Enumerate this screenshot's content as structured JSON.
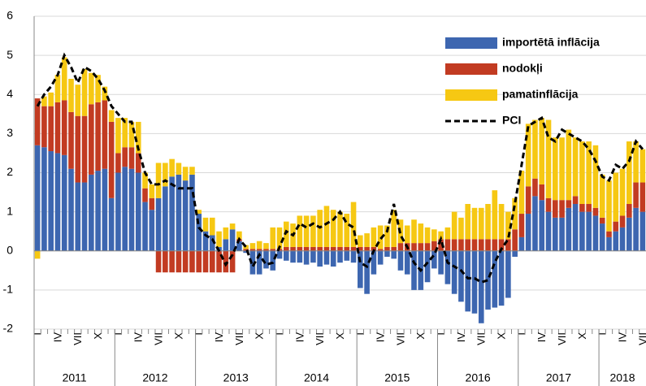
{
  "chart_data": {
    "type": "bar",
    "categories": [
      "I",
      null,
      null,
      "IV",
      null,
      null,
      "VII",
      null,
      null,
      "X",
      null,
      null,
      "I",
      null,
      null,
      "IV",
      null,
      null,
      "VII",
      null,
      null,
      "X",
      null,
      null,
      "I",
      null,
      null,
      "IV",
      null,
      null,
      "VII",
      null,
      null,
      "X",
      null,
      null,
      "I",
      null,
      null,
      "IV",
      null,
      null,
      "VII",
      null,
      null,
      "X",
      null,
      null,
      "I",
      null,
      null,
      "IV",
      null,
      null,
      "VII",
      null,
      null,
      "X",
      null,
      null,
      "I",
      null,
      null,
      "IV",
      null,
      null,
      "VII",
      null,
      null,
      "X",
      null,
      null,
      "I",
      null,
      null,
      "IV",
      null,
      null,
      "VII",
      null,
      null,
      "X",
      null,
      null,
      "I",
      null,
      null,
      "IV",
      null,
      null,
      "VII"
    ],
    "year_labels": [
      "2011",
      "2012",
      "2013",
      "2014",
      "2015",
      "2016",
      "2017",
      "2018"
    ],
    "series": [
      {
        "name": "importētā inflācija",
        "color": "#3d66b0",
        "type": "bar",
        "values": [
          2.7,
          2.65,
          2.55,
          2.5,
          2.45,
          2.1,
          1.75,
          1.75,
          1.95,
          2.05,
          2.1,
          1.35,
          2.0,
          2.15,
          2.1,
          2.0,
          1.25,
          1.05,
          1.35,
          1.65,
          1.9,
          1.95,
          1.8,
          1.95,
          0.95,
          0.5,
          0.4,
          0.1,
          0.3,
          0.55,
          0.25,
          -0.05,
          -0.6,
          -0.6,
          -0.45,
          -0.5,
          -0.2,
          -0.25,
          -0.3,
          -0.3,
          -0.35,
          -0.3,
          -0.4,
          -0.35,
          -0.4,
          -0.3,
          -0.25,
          -0.3,
          -0.95,
          -1.1,
          -0.6,
          -0.35,
          -0.15,
          -0.2,
          -0.5,
          -0.6,
          -1.0,
          -1.0,
          -0.8,
          -0.45,
          -0.6,
          -0.85,
          -1.1,
          -1.3,
          -1.55,
          -1.6,
          -1.85,
          -1.5,
          -1.45,
          -1.4,
          -1.2,
          -0.15,
          0.35,
          0.95,
          1.4,
          1.3,
          1.0,
          0.85,
          0.85,
          1.1,
          1.2,
          1.0,
          1.0,
          0.9,
          0.7,
          0.35,
          0.5,
          0.6,
          0.85,
          1.1,
          1.0
        ]
      },
      {
        "name": "nodokļi",
        "color": "#c23b22",
        "type": "bar",
        "values": [
          1.2,
          1.05,
          1.15,
          1.3,
          1.4,
          1.45,
          1.7,
          1.7,
          1.8,
          1.75,
          1.75,
          1.95,
          0.5,
          0.5,
          0.55,
          0.5,
          0.35,
          0.3,
          -0.55,
          -0.55,
          -0.55,
          -0.55,
          -0.55,
          -0.55,
          -0.55,
          -0.55,
          -0.55,
          -0.55,
          -0.55,
          -0.55,
          0.05,
          0.05,
          0.05,
          0.05,
          0.05,
          0.05,
          0.05,
          0.1,
          0.1,
          0.1,
          0.1,
          0.1,
          0.1,
          0.1,
          0.1,
          0.1,
          0.1,
          0.1,
          0.1,
          0.1,
          0.1,
          0.05,
          0.1,
          0.1,
          0.2,
          0.2,
          0.2,
          0.2,
          0.2,
          0.25,
          0.3,
          0.3,
          0.3,
          0.3,
          0.3,
          0.3,
          0.3,
          0.3,
          0.3,
          0.3,
          0.3,
          0.55,
          0.6,
          0.7,
          0.45,
          0.4,
          0.35,
          0.45,
          0.45,
          0.2,
          0.2,
          0.2,
          0.2,
          0.2,
          0.15,
          0.15,
          0.25,
          0.3,
          0.35,
          0.65,
          0.75
        ]
      },
      {
        "name": "pamatinflācija",
        "color": "#f6c813",
        "type": "bar",
        "values": [
          -0.2,
          0.25,
          0.35,
          0.7,
          1.1,
          0.85,
          0.8,
          1.2,
          0.8,
          0.7,
          0.35,
          0.3,
          0.9,
          0.75,
          0.65,
          0.8,
          0.4,
          0.35,
          0.9,
          0.6,
          0.45,
          0.3,
          0.35,
          0.2,
          0.1,
          0.35,
          0.45,
          0.4,
          0.3,
          0.15,
          0.2,
          0.1,
          0.15,
          0.2,
          0.15,
          0.55,
          0.55,
          0.65,
          0.6,
          0.8,
          0.8,
          0.8,
          0.95,
          1.05,
          0.95,
          0.9,
          0.85,
          1.15,
          0.3,
          0.35,
          0.5,
          0.6,
          0.55,
          0.95,
          0.6,
          0.45,
          0.6,
          0.5,
          0.4,
          0.3,
          0.2,
          0.3,
          0.7,
          0.55,
          0.9,
          0.8,
          0.8,
          0.9,
          1.25,
          0.9,
          0.7,
          0.8,
          1.1,
          1.6,
          1.5,
          1.7,
          2.0,
          1.6,
          1.6,
          1.8,
          1.5,
          1.6,
          1.6,
          1.6,
          1.1,
          1.3,
          1.25,
          1.2,
          1.6,
          1.05,
          0.85
        ]
      },
      {
        "name": "PCI",
        "color": "#000000",
        "type": "line",
        "values": [
          3.7,
          4.0,
          4.2,
          4.5,
          5.0,
          4.7,
          4.3,
          4.7,
          4.6,
          4.4,
          4.1,
          3.7,
          3.5,
          3.3,
          3.3,
          2.6,
          2.0,
          1.7,
          1.7,
          1.8,
          1.7,
          1.6,
          1.6,
          1.6,
          0.6,
          0.4,
          0.3,
          0.0,
          -0.35,
          -0.1,
          0.3,
          0.1,
          -0.4,
          -0.1,
          -0.35,
          -0.3,
          0.1,
          0.5,
          0.4,
          0.7,
          0.6,
          0.7,
          0.6,
          0.7,
          0.8,
          1.0,
          0.7,
          0.6,
          -0.3,
          -0.4,
          0.0,
          0.3,
          0.5,
          1.2,
          0.4,
          0.1,
          -0.3,
          -0.5,
          -0.3,
          -0.1,
          0.3,
          -0.3,
          -0.4,
          -0.5,
          -0.7,
          -0.7,
          -0.8,
          -0.75,
          -0.3,
          0.05,
          0.3,
          1.2,
          2.2,
          3.2,
          3.3,
          3.4,
          2.9,
          2.8,
          3.1,
          3.0,
          2.9,
          2.8,
          2.6,
          2.3,
          1.9,
          1.8,
          2.2,
          2.1,
          2.3,
          2.8,
          2.6
        ]
      }
    ],
    "ylim": [
      -2,
      6
    ],
    "yticks": [
      -2,
      -1,
      0,
      1,
      2,
      3,
      4,
      5,
      6
    ],
    "grid": true
  }
}
